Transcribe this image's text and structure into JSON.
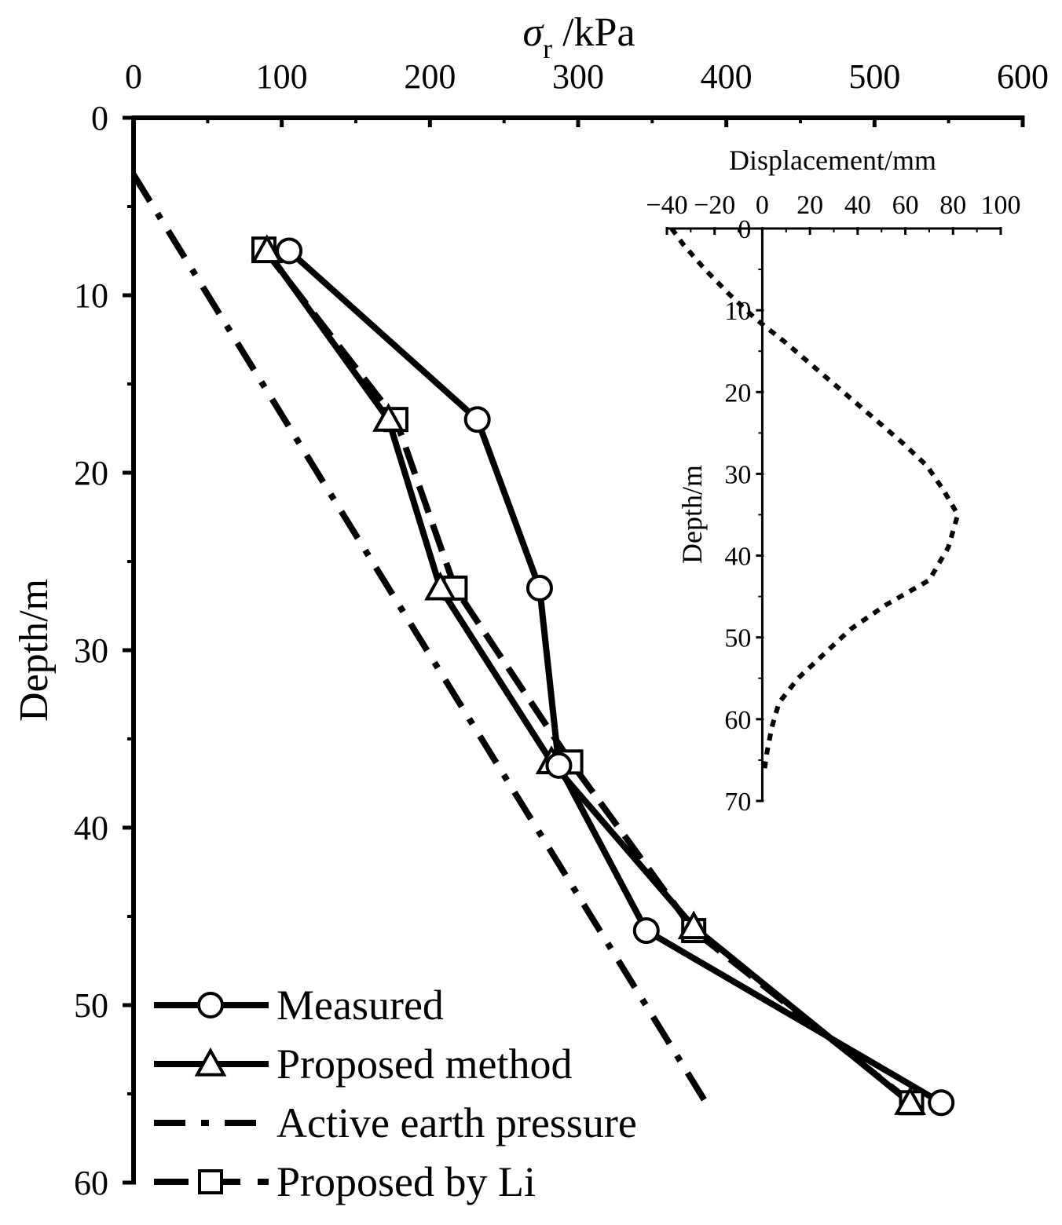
{
  "chart_data": [
    {
      "id": "main",
      "type": "line",
      "title": "",
      "xlabel_main": "σ",
      "xlabel_sub": "r",
      "xlabel_unit": " /kPa",
      "ylabel": "Depth/m",
      "xlim": [
        0,
        600
      ],
      "ylim": [
        0,
        60
      ],
      "xticks": [
        0,
        100,
        200,
        300,
        400,
        500,
        600
      ],
      "yticks": [
        0,
        10,
        20,
        30,
        40,
        50,
        60
      ],
      "grid": false,
      "legend_position": "bottom-left",
      "series": [
        {
          "name": "Measured",
          "style": "solid",
          "marker": "circle",
          "points": [
            [
              105,
              7.5
            ],
            [
              232,
              17
            ],
            [
              274,
              26.5
            ],
            [
              287,
              36.5
            ],
            [
              346,
              45.8
            ],
            [
              545,
              55.5
            ]
          ]
        },
        {
          "name": "Proposed method",
          "style": "solid",
          "marker": "triangle",
          "points": [
            [
              90,
              7.5
            ],
            [
              172,
              17
            ],
            [
              207,
              26.5
            ],
            [
              282,
              36.3
            ],
            [
              378,
              45.6
            ],
            [
              524,
              55.5
            ]
          ]
        },
        {
          "name": "Active earth pressure",
          "style": "dashdot",
          "marker": "none",
          "points": [
            [
              0,
              3.2
            ],
            [
              390,
              56
            ]
          ]
        },
        {
          "name": "Proposed by Li",
          "style": "dashed",
          "marker": "square",
          "points": [
            [
              88,
              7.4
            ],
            [
              177,
              17
            ],
            [
              217,
              26.5
            ],
            [
              295,
              36.3
            ],
            [
              378,
              45.8
            ],
            [
              525,
              55.5
            ]
          ]
        }
      ]
    },
    {
      "id": "inset",
      "type": "line",
      "title": "",
      "xlabel": "Displacement/mm",
      "ylabel": "Depth/m",
      "xlim": [
        -40,
        100
      ],
      "ylim": [
        0,
        70
      ],
      "xticks": [
        -40,
        -20,
        0,
        20,
        40,
        60,
        80,
        100
      ],
      "yticks": [
        0,
        10,
        20,
        30,
        40,
        50,
        60,
        70
      ],
      "legend_position": "none",
      "series": [
        {
          "name": "Displacement",
          "style": "dotted",
          "points": [
            [
              -38,
              0
            ],
            [
              -33,
              2
            ],
            [
              -24,
              5
            ],
            [
              -14,
              8
            ],
            [
              -3,
              11
            ],
            [
              10,
              14
            ],
            [
              22,
              17
            ],
            [
              34,
              20
            ],
            [
              46,
              23
            ],
            [
              58,
              26
            ],
            [
              69,
              29
            ],
            [
              76,
              32
            ],
            [
              82,
              35
            ],
            [
              78,
              39
            ],
            [
              70,
              43
            ],
            [
              52,
              46
            ],
            [
              37,
              49
            ],
            [
              26,
              52
            ],
            [
              15,
              55
            ],
            [
              7,
              58
            ],
            [
              4,
              61
            ],
            [
              2,
              64
            ],
            [
              1,
              66
            ]
          ]
        }
      ]
    }
  ]
}
